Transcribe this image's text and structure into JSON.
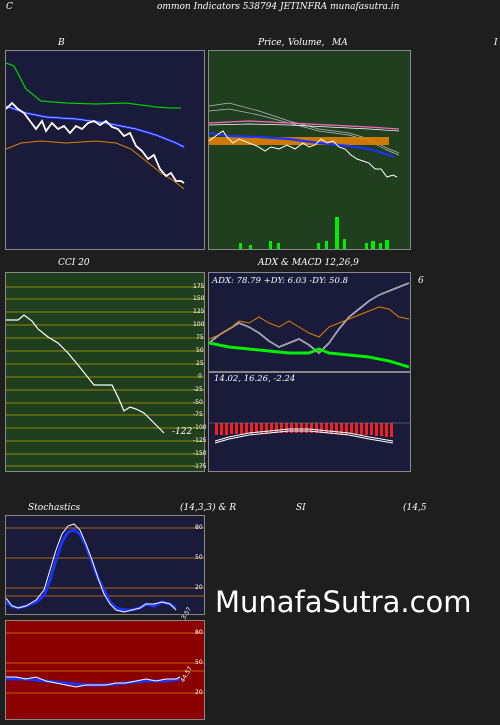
{
  "header": {
    "left": "C",
    "title": "ommon  Indicators 538794  JETINFRA munafasutra.in"
  },
  "panels": {
    "b_title": "B",
    "price_title": "Price,",
    "volume_title": "Volume,",
    "ma_title": "MA",
    "right_edge_letter": "I",
    "cci_title": "CCI 20",
    "adx_macd_title": "ADX   & MACD 12,26,9",
    "adx_readout": "ADX: 78.79 +DY: 6.03 -DY: 50.8",
    "adx_right_mark": "6",
    "macd_readout": "14.02,  16.26,  -2.24",
    "cci_value": "-122",
    "stoch_title": "Stochastics",
    "stoch_params": "(14,3,3) & R",
    "rsi_title": "SI",
    "rsi_params": "(14,5",
    "stoch_value": "3.57",
    "rsi_value": "44.57"
  },
  "cci_axis": [
    "175",
    "150",
    "125",
    "100",
    "75",
    "50",
    "25",
    "0",
    "-25",
    "-50",
    "-75",
    "-100",
    "-125",
    "-150",
    "-175"
  ],
  "stoch_axis": [
    "80",
    "50",
    "20"
  ],
  "rsi_axis": [
    "80",
    "50",
    "20"
  ],
  "watermark": "MunafaSutra.com",
  "colors": {
    "bg": "#1e1e1e",
    "navy_panel": "#1a1a3a",
    "green_panel": "#1f3f1f",
    "red_panel": "#8b0000",
    "olive_line": "#b8a000",
    "orange": "#e08000",
    "blue": "#1a33ff",
    "green_line": "#00cc00"
  }
}
